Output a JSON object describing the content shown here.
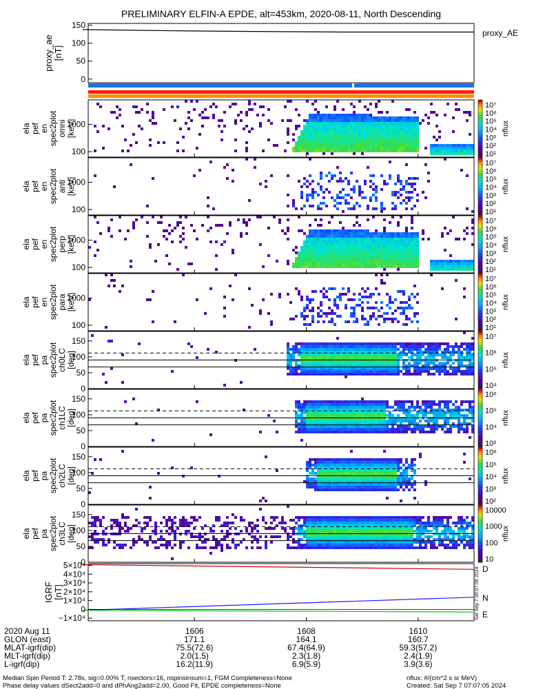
{
  "title": "PRELIMINARY ELFIN-A EPDE, alt=453km, 2020-08-11, North Descending",
  "colors": {
    "bar_blue": "#1f6fe0",
    "bar_red": "#ff1a00",
    "bar_orange": "#ff8c00",
    "grf_red": "#cc0000",
    "grf_blue": "#1a1aff",
    "grf_green": "#00cc00"
  },
  "chart_data": [
    {
      "type": "line",
      "ylabel_lines": [
        "proxy_ae",
        "[nT]"
      ],
      "ylim": [
        -10,
        155
      ],
      "yticks": [
        {
          "v": 150,
          "label": "150"
        },
        {
          "v": 100,
          "label": "100"
        },
        {
          "v": 50,
          "label": "50"
        },
        {
          "v": 0,
          "label": "0"
        }
      ],
      "legend": "proxy_AE",
      "series": [
        {
          "x": [
            1604.0,
            1604.9,
            1605.9,
            1606.8,
            1607.7,
            1608.7,
            1609.6,
            1610.6,
            1611.0
          ],
          "y": [
            138,
            136,
            134,
            133,
            132,
            131,
            131,
            131,
            131
          ]
        }
      ]
    },
    {
      "type": "heatmap",
      "ylabel_lines": [
        "ela",
        "pef",
        "en",
        "spec2plot",
        "omni",
        "[keV]"
      ],
      "yticks": [
        {
          "v": 1000,
          "label": "1000"
        },
        {
          "v": 100,
          "label": "100"
        }
      ],
      "colorbar": {
        "label": "nflux",
        "scale": "log",
        "ticks": [
          {
            "exp": 7
          },
          {
            "exp": 6
          },
          {
            "exp": 5
          },
          {
            "exp": 4
          },
          {
            "exp": 3
          },
          {
            "exp": 2
          },
          {
            "exp": 1
          }
        ]
      }
    },
    {
      "type": "heatmap",
      "ylabel_lines": [
        "ela",
        "pef",
        "en",
        "spec2plot",
        "anti",
        "[keV]"
      ],
      "yticks": [
        {
          "v": 1000,
          "label": "1000"
        },
        {
          "v": 100,
          "label": "100"
        }
      ],
      "colorbar": {
        "label": "nflux",
        "scale": "log",
        "ticks": [
          {
            "exp": 7
          },
          {
            "exp": 6
          },
          {
            "exp": 5
          },
          {
            "exp": 4
          },
          {
            "exp": 3
          },
          {
            "exp": 2
          },
          {
            "exp": 1
          }
        ]
      }
    },
    {
      "type": "heatmap",
      "ylabel_lines": [
        "ela",
        "pef",
        "en",
        "spec2plot",
        "perp",
        "[keV]"
      ],
      "yticks": [
        {
          "v": 1000,
          "label": "1000"
        },
        {
          "v": 100,
          "label": "100"
        }
      ],
      "colorbar": {
        "label": "nflux",
        "scale": "log",
        "ticks": [
          {
            "exp": 7
          },
          {
            "exp": 6
          },
          {
            "exp": 5
          },
          {
            "exp": 4
          },
          {
            "exp": 3
          },
          {
            "exp": 2
          },
          {
            "exp": 1
          }
        ]
      }
    },
    {
      "type": "heatmap",
      "ylabel_lines": [
        "ela",
        "pef",
        "en",
        "spec2plot",
        "para",
        "[keV]"
      ],
      "yticks": [
        {
          "v": 1000,
          "label": "1000"
        },
        {
          "v": 100,
          "label": "100"
        }
      ],
      "colorbar": {
        "label": "nflux",
        "scale": "log",
        "ticks": [
          {
            "exp": 7
          },
          {
            "exp": 6
          },
          {
            "exp": 5
          },
          {
            "exp": 4
          },
          {
            "exp": 3
          },
          {
            "exp": 2
          },
          {
            "exp": 1
          }
        ]
      }
    },
    {
      "type": "heatmap",
      "ylabel_lines": [
        "ela",
        "pef",
        "pa",
        "spec2plot",
        "ch0LC",
        "[deg]"
      ],
      "ylim": [
        0,
        180
      ],
      "yticks": [
        {
          "v": 150,
          "label": "150"
        },
        {
          "v": 100,
          "label": "100"
        },
        {
          "v": 50,
          "label": "50"
        },
        {
          "v": 0,
          "label": "0"
        }
      ],
      "colorbar": {
        "label": "nflux",
        "scale": "log",
        "ticks": [
          {
            "exp": 7
          },
          {
            "exp": 6
          },
          {
            "exp": 5
          },
          {
            "exp": 4
          }
        ]
      }
    },
    {
      "type": "heatmap",
      "ylabel_lines": [
        "ela",
        "pef",
        "pa",
        "spec2plot",
        "ch1LC",
        "[deg]"
      ],
      "ylim": [
        0,
        180
      ],
      "yticks": [
        {
          "v": 150,
          "label": "150"
        },
        {
          "v": 100,
          "label": "100"
        },
        {
          "v": 50,
          "label": "50"
        },
        {
          "v": 0,
          "label": "0"
        }
      ],
      "colorbar": {
        "label": "nflux",
        "scale": "log",
        "ticks": [
          {
            "exp": 6
          },
          {
            "exp": 5
          },
          {
            "exp": 4
          },
          {
            "exp": 3
          }
        ]
      }
    },
    {
      "type": "heatmap",
      "ylabel_lines": [
        "ela",
        "pef",
        "pa",
        "spec2plot",
        "ch2LC",
        "[deg]"
      ],
      "ylim": [
        0,
        180
      ],
      "yticks": [
        {
          "v": 150,
          "label": "150"
        },
        {
          "v": 100,
          "label": "100"
        },
        {
          "v": 50,
          "label": "50"
        },
        {
          "v": 0,
          "label": "0"
        }
      ],
      "colorbar": {
        "label": "nflux",
        "scale": "log",
        "ticks": [
          {
            "exp": 6
          },
          {
            "exp": 5
          },
          {
            "exp": 4
          },
          {
            "exp": 3
          },
          {
            "exp": 2
          }
        ]
      }
    },
    {
      "type": "heatmap",
      "ylabel_lines": [
        "ela",
        "pef",
        "pa",
        "spec2plot",
        "ch3LC",
        "[deg]"
      ],
      "ylim": [
        0,
        180
      ],
      "yticks": [
        {
          "v": 150,
          "label": "150"
        },
        {
          "v": 100,
          "label": "100"
        },
        {
          "v": 50,
          "label": "50"
        },
        {
          "v": 0,
          "label": "0"
        }
      ],
      "colorbar": {
        "label": "nflux",
        "scale": "log",
        "ticks": [
          {
            "label": "10000"
          },
          {
            "label": "1000"
          },
          {
            "label": "100"
          },
          {
            "label": "10"
          }
        ]
      }
    },
    {
      "type": "line",
      "ylabel_lines": [
        "IGRF",
        "[nT]"
      ],
      "ylim": [
        -13000,
        52000
      ],
      "yticks": [
        {
          "v": 50000,
          "label": "5×10⁴"
        },
        {
          "v": 40000,
          "label": "4×10⁴"
        },
        {
          "v": 30000,
          "label": "3×10⁴"
        },
        {
          "v": 20000,
          "label": "2×10⁴"
        },
        {
          "v": 10000,
          "label": "1×10⁴"
        },
        {
          "v": 0,
          "label": "0"
        },
        {
          "v": -10000,
          "label": "−1×10⁴"
        }
      ],
      "series": [
        {
          "name": "D",
          "x": [
            1604.0,
            1611.0
          ],
          "y": [
            50800,
            45500
          ]
        },
        {
          "name": "N",
          "x": [
            1604.0,
            1611.0
          ],
          "y": [
            -1000,
            13800
          ]
        },
        {
          "name": "E",
          "x": [
            1604.0,
            1611.0
          ],
          "y": [
            -1100,
            -3000
          ]
        }
      ],
      "side_note": "Sat Sep  7 00:07:06 2024"
    }
  ],
  "x_axis": {
    "xlim": [
      1604.1,
      1611.0
    ],
    "ticks": [
      1606,
      1608,
      1610
    ],
    "rows": [
      {
        "label": "2020 Aug 11",
        "values": [
          "1606",
          "1608",
          "1610"
        ]
      },
      {
        "label": "GLON (east)",
        "values": [
          "171.1",
          "164.1",
          "160.7"
        ]
      },
      {
        "label": "MLAT-igrf(dip)",
        "values": [
          "75.5(72.6)",
          "67.4(64.9)",
          "59.3(57.2)"
        ]
      },
      {
        "label": "MLT-igrf(dip)",
        "values": [
          "2.0(1.5)",
          "2.3(1.8)",
          "2.4(1.9)"
        ]
      },
      {
        "label": "L-igrf(dip)",
        "values": [
          "16.2(11.9)",
          "6.9(5.9)",
          "3.9(3.6)"
        ]
      }
    ]
  },
  "footer": {
    "line1": "Median Spin Period T: 2.78s, sig=0.00% T, nsectors=16, nspinsinsum=1, FGM Completeness=None",
    "line2": "Phase delay values dSect2add=0 and dPhAng2add=2.00, Good Fit, EPDE completeness=None",
    "units": "nflux: #/(cm^2 s sr MeV)",
    "created": "Created: Sat Sep  7 07:07:05 2024"
  }
}
